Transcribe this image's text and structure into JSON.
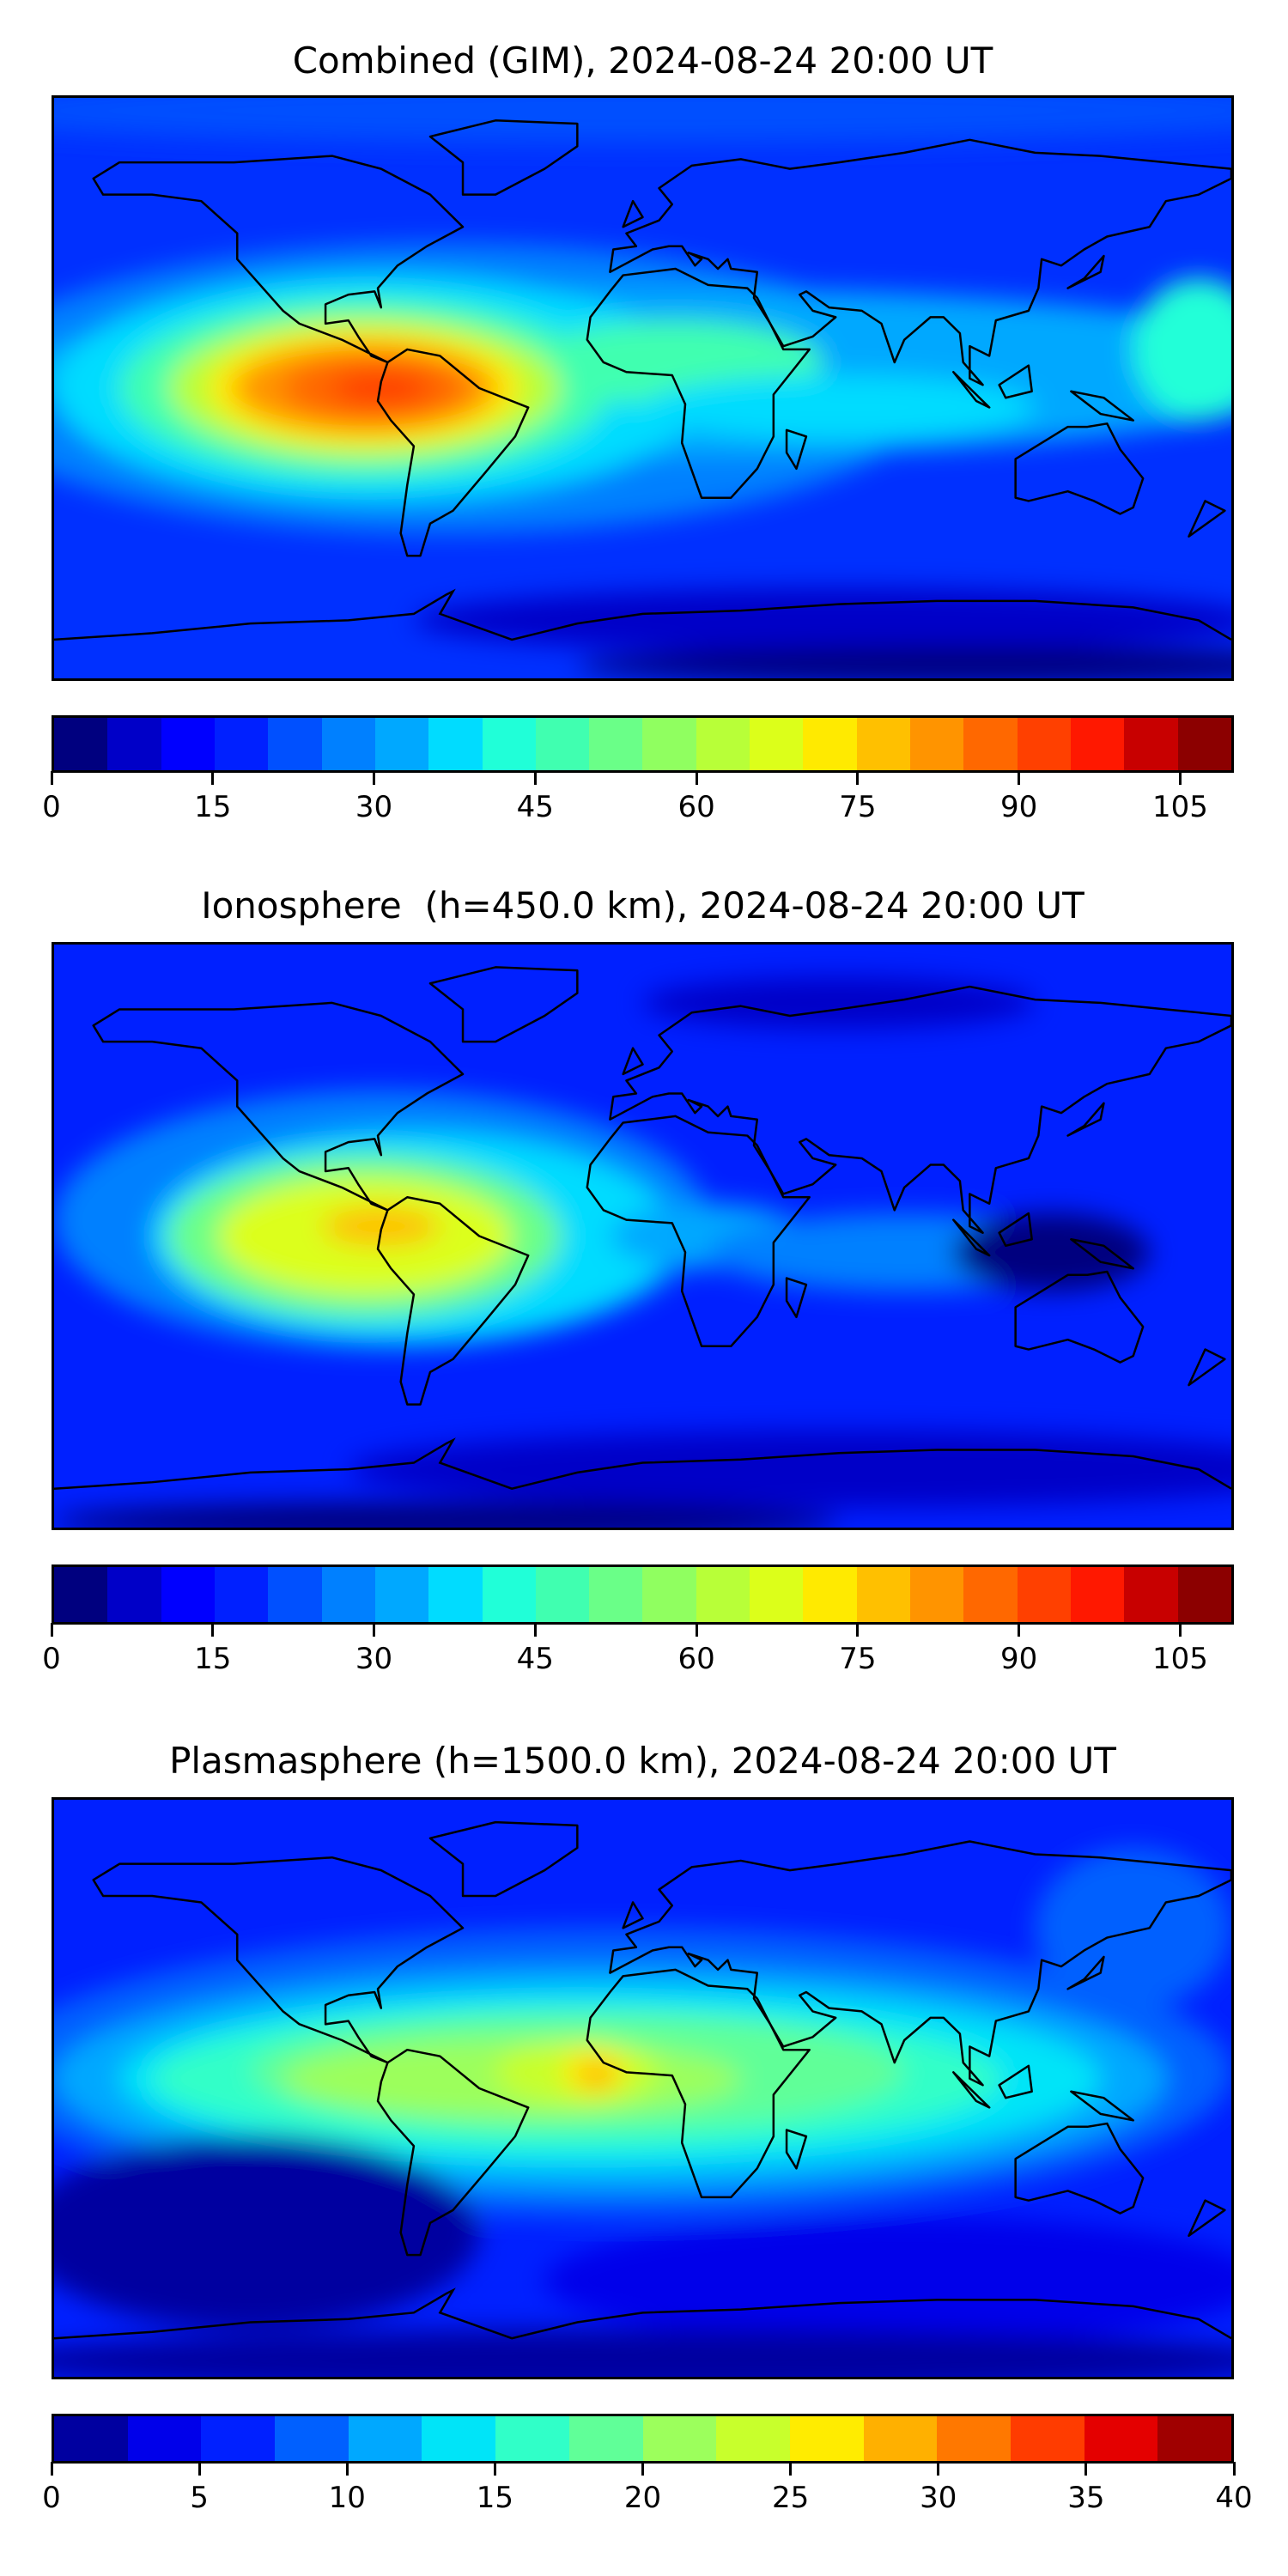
{
  "chart_data": [
    {
      "type": "heatmap",
      "title": "Combined (GIM), 2024-08-24 20:00 UT",
      "projection": "equirectangular world map",
      "colorbar": {
        "range": [
          0,
          110
        ],
        "step": 5,
        "ticks": [
          0,
          15,
          30,
          45,
          60,
          75,
          90,
          105
        ],
        "colors": [
          "#00007f",
          "#0000c8",
          "#0000ff",
          "#0020ff",
          "#0050ff",
          "#0080ff",
          "#00a8ff",
          "#00dcff",
          "#20ffd8",
          "#40ffb0",
          "#6aff88",
          "#90ff60",
          "#b8ff38",
          "#dcff1a",
          "#ffea00",
          "#ffc000",
          "#ff9400",
          "#ff6800",
          "#ff4000",
          "#ff1800",
          "#c80000",
          "#8c0000"
        ]
      },
      "peak": {
        "lon": -85,
        "lat": 0,
        "approx_value": 100
      }
    },
    {
      "type": "heatmap",
      "title": "Ionosphere  (h=450.0 km), 2024-08-24 20:00 UT",
      "projection": "equirectangular world map",
      "colorbar": {
        "range": [
          0,
          110
        ],
        "step": 5,
        "ticks": [
          0,
          15,
          30,
          45,
          60,
          75,
          90,
          105
        ],
        "colors": [
          "#00007f",
          "#0000c8",
          "#0000ff",
          "#0020ff",
          "#0050ff",
          "#0080ff",
          "#00a8ff",
          "#00dcff",
          "#20ffd8",
          "#40ffb0",
          "#6aff88",
          "#90ff60",
          "#b8ff38",
          "#dcff1a",
          "#ffea00",
          "#ffc000",
          "#ff9400",
          "#ff6800",
          "#ff4000",
          "#ff1800",
          "#c80000",
          "#8c0000"
        ]
      },
      "peak": {
        "lon": -80,
        "lat": 3,
        "approx_value": 75
      }
    },
    {
      "type": "heatmap",
      "title": "Plasmasphere (h=1500.0 km), 2024-08-24 20:00 UT",
      "projection": "equirectangular world map",
      "colorbar": {
        "range": [
          0,
          40
        ],
        "step": 2.5,
        "ticks": [
          0,
          5,
          10,
          15,
          20,
          25,
          30,
          35,
          40
        ],
        "colors": [
          "#0000a0",
          "#0000ea",
          "#0020ff",
          "#0060ff",
          "#00a8ff",
          "#00e4f8",
          "#30ffc8",
          "#60ff98",
          "#9cff5c",
          "#c8ff2c",
          "#ffec00",
          "#ffb000",
          "#ff7800",
          "#ff3c00",
          "#e40000",
          "#a00000"
        ]
      },
      "peak": {
        "lon": -15,
        "lat": 5,
        "approx_value": 30
      }
    }
  ]
}
